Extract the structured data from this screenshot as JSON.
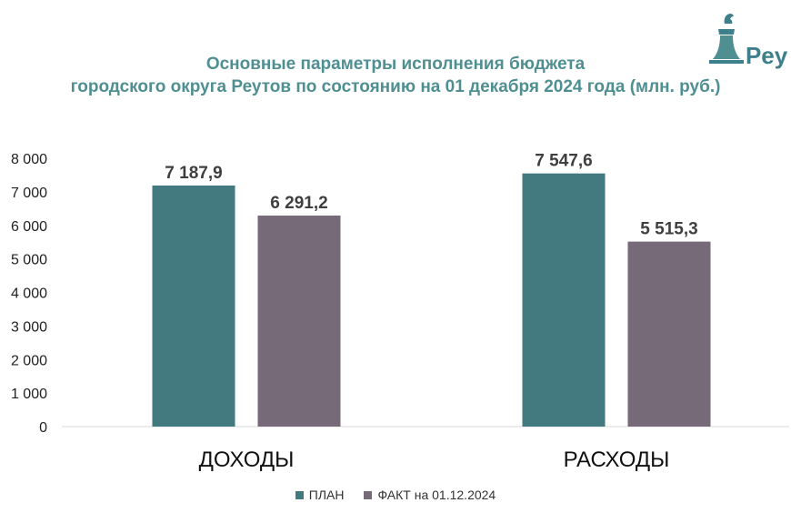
{
  "title": {
    "line1": "Основные параметры исполнения бюджета",
    "line2": "городского округа Реутов по состоянию на 01 декабря 2024 года (млн. руб.)"
  },
  "logo": {
    "text": "Реу",
    "icon": "bell-with-bird-logo"
  },
  "colors": {
    "plan": "#427a80",
    "fact": "#766a79",
    "title": "#4f8f92",
    "axis": "#d9d9d9"
  },
  "chart_data": {
    "type": "bar",
    "title": "Основные параметры исполнения бюджета городского округа Реутов по состоянию на 01 декабря 2024 года (млн. руб.)",
    "categories": [
      "ДОХОДЫ",
      "РАСХОДЫ"
    ],
    "series": [
      {
        "name": "ПЛАН",
        "values": [
          7187.9,
          7547.6
        ],
        "labels": [
          "7 187,9",
          "7 547,6"
        ]
      },
      {
        "name": "ФАКТ на 01.12.2024",
        "values": [
          6291.2,
          5515.3
        ],
        "labels": [
          "6 291,2",
          "5 515,3"
        ]
      }
    ],
    "ylim": [
      0,
      8000
    ],
    "yticks": [
      "0",
      "1 000",
      "2 000",
      "3 000",
      "4 000",
      "5 000",
      "6 000",
      "7 000",
      "8 000"
    ],
    "grid": false,
    "legend": "bottom"
  }
}
